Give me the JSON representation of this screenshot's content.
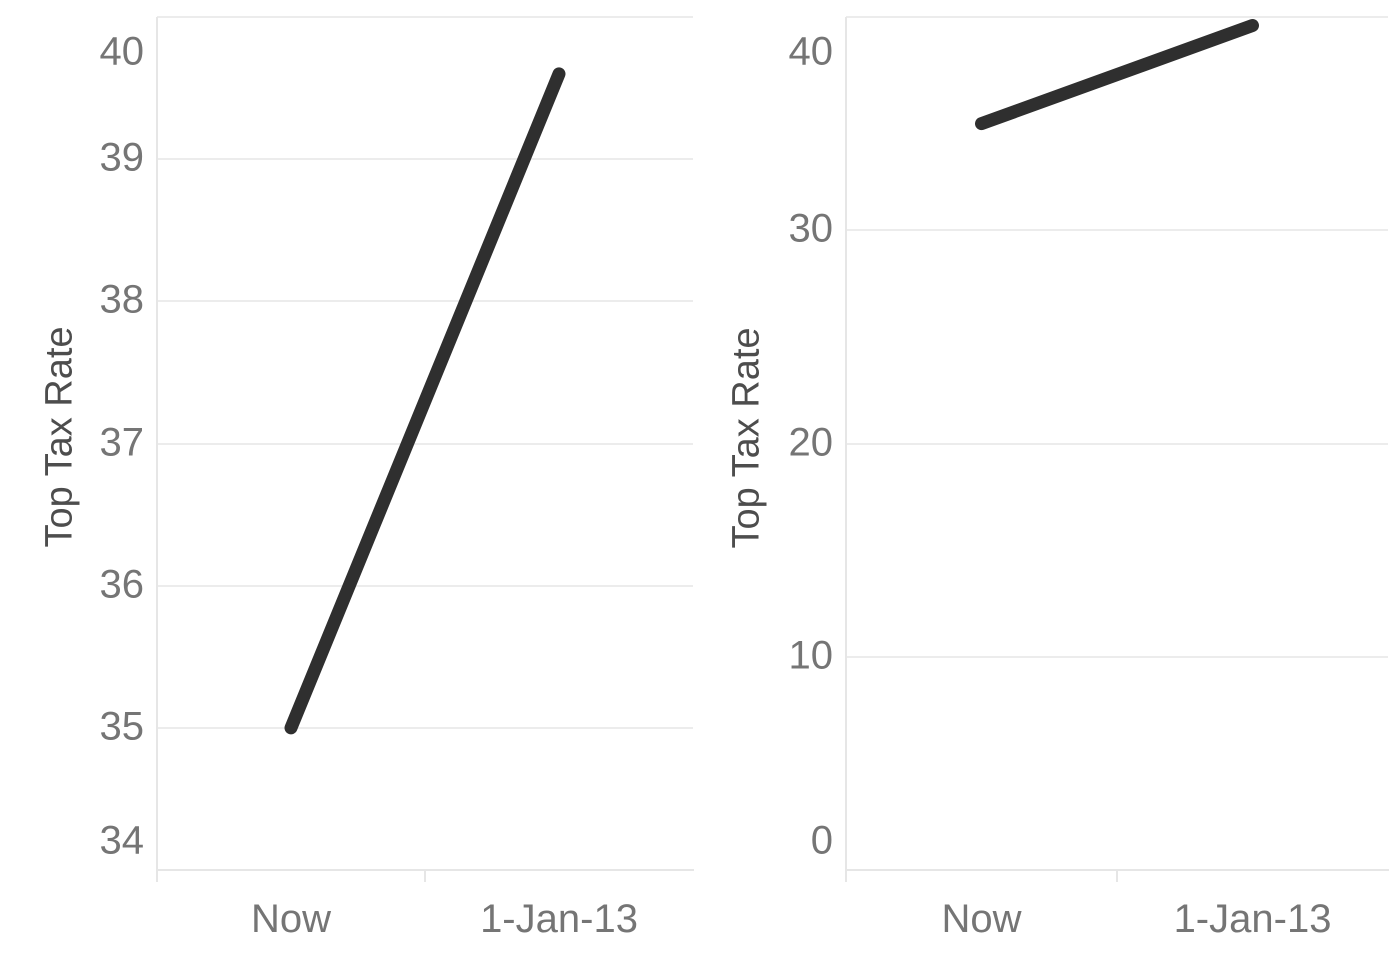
{
  "page": {
    "background": "#ffffff"
  },
  "colors": {
    "line": "#2f2f2f",
    "tick_label": "#757575",
    "axis_title": "#4d4d4d",
    "gridline": "#ececec",
    "axis_line": "#e6e6e6"
  },
  "chart_data": [
    {
      "type": "line",
      "title": "",
      "categories": [
        "Now",
        "1-Jan-13"
      ],
      "series": [
        {
          "name": "Top Tax Rate",
          "values": [
            35,
            39.6
          ]
        }
      ],
      "xlabel": "",
      "ylabel": "Top Tax Rate",
      "ylim": [
        34,
        40
      ],
      "yticks": [
        34,
        35,
        36,
        37,
        38,
        39,
        40
      ],
      "grid": true,
      "legend": false,
      "legend_position": "none"
    },
    {
      "type": "line",
      "title": "",
      "categories": [
        "Now",
        "1-Jan-13"
      ],
      "series": [
        {
          "name": "Top Tax Rate",
          "values": [
            35,
            39.6
          ]
        }
      ],
      "xlabel": "",
      "ylabel": "Top Tax Rate",
      "ylim": [
        0,
        40
      ],
      "yticks": [
        0,
        10,
        20,
        30,
        40
      ],
      "grid": true,
      "legend": false,
      "legend_position": "none"
    }
  ]
}
